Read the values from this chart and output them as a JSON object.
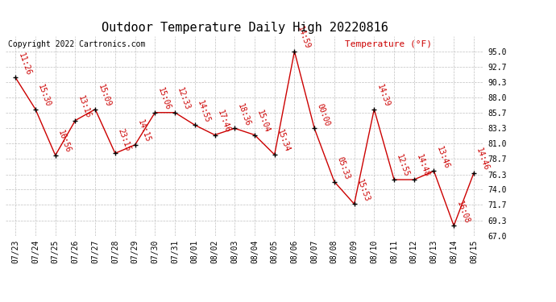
{
  "title": "Outdoor Temperature Daily High 20220816",
  "copyright": "Copyright 2022 Cartronics.com",
  "ylabel": "Temperature (°F)",
  "dates": [
    "07/23",
    "07/24",
    "07/25",
    "07/26",
    "07/27",
    "07/28",
    "07/29",
    "07/30",
    "07/31",
    "08/01",
    "08/02",
    "08/03",
    "08/04",
    "08/05",
    "08/06",
    "08/07",
    "08/08",
    "08/09",
    "08/10",
    "08/11",
    "08/12",
    "08/13",
    "08/14",
    "08/15"
  ],
  "temps": [
    91.0,
    86.2,
    79.2,
    84.5,
    86.2,
    79.5,
    80.8,
    85.7,
    85.7,
    83.8,
    82.3,
    83.3,
    82.3,
    79.3,
    95.0,
    83.3,
    75.2,
    71.8,
    86.2,
    75.5,
    75.5,
    76.8,
    68.5,
    76.5
  ],
  "labels": [
    "11:26",
    "15:30",
    "16:56",
    "13:16",
    "15:09",
    "23:15",
    "14:15",
    "15:06",
    "12:33",
    "14:55",
    "17:46",
    "18:36",
    "15:04",
    "15:34",
    "14:59",
    "00:00",
    "05:33",
    "15:53",
    "14:39",
    "12:55",
    "14:48",
    "13:46",
    "16:08",
    "14:46"
  ],
  "line_color": "#cc0000",
  "marker_color": "#000000",
  "bg_color": "#ffffff",
  "grid_color": "#c0c0c0",
  "ylim_min": 67.0,
  "ylim_max": 97.3,
  "yticks": [
    67.0,
    69.3,
    71.7,
    74.0,
    76.3,
    78.7,
    81.0,
    83.3,
    85.7,
    88.0,
    90.3,
    92.7,
    95.0
  ],
  "title_fontsize": 11,
  "label_fontsize": 7,
  "tick_fontsize": 7,
  "copyright_fontsize": 7
}
